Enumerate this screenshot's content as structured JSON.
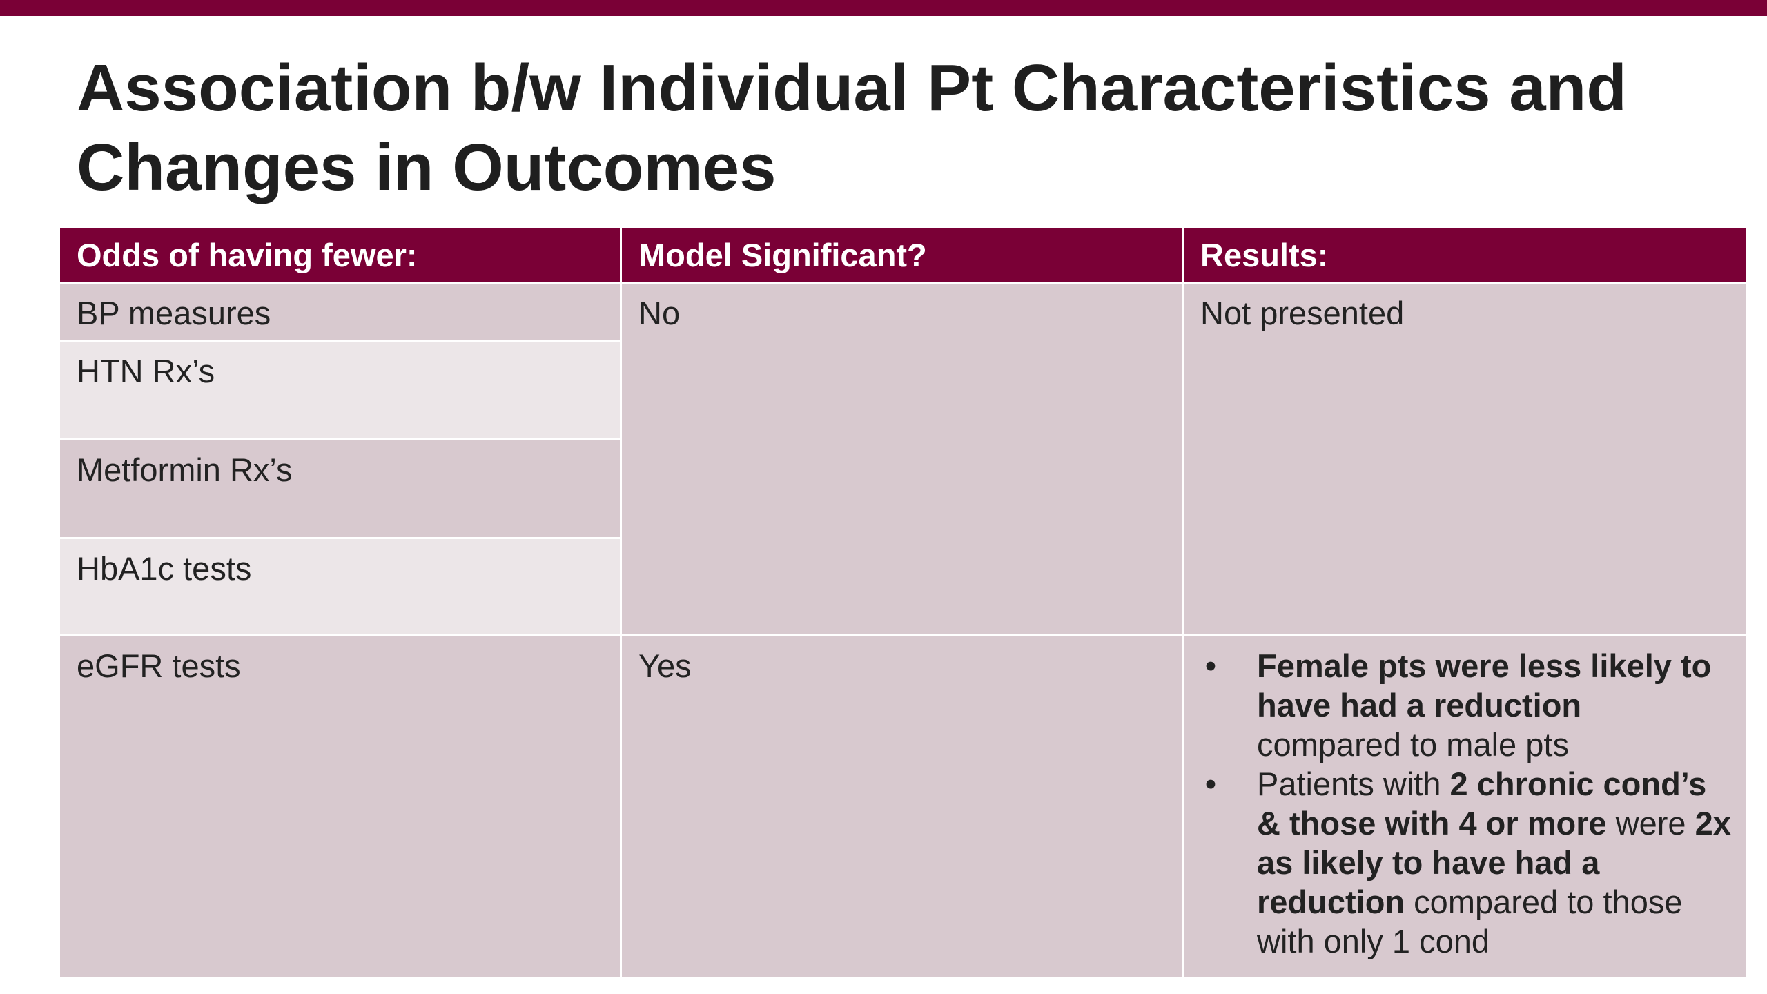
{
  "slide": {
    "title_line1": "Association b/w Individual Pt Characteristics and",
    "title_line2": "Changes in Outcomes"
  },
  "colors": {
    "accent": "#7a0036",
    "row_dark": "#d8c9cf",
    "row_light": "#ece6e8"
  },
  "table": {
    "headers": [
      "Odds of having fewer:",
      "Model Significant?",
      "Results:"
    ],
    "outcomes": [
      "BP measures",
      "HTN Rx’s",
      "Metformin Rx’s",
      "HbA1c tests",
      "eGFR tests"
    ],
    "group1": {
      "significant": "No",
      "results": "Not presented"
    },
    "group2": {
      "significant": "Yes",
      "bullet_symbol": "•",
      "bullet1": {
        "bold": "Female pts were less likely to have had a reduction",
        "rest": " compared to male pts"
      },
      "bullet2": {
        "t1": "Patients with ",
        "b1": "2 chronic cond’s & those with 4 or more",
        "t2": " were ",
        "b2": "2x as likely to have had a reduction",
        "t3": " compared to those with only 1 cond"
      }
    }
  }
}
